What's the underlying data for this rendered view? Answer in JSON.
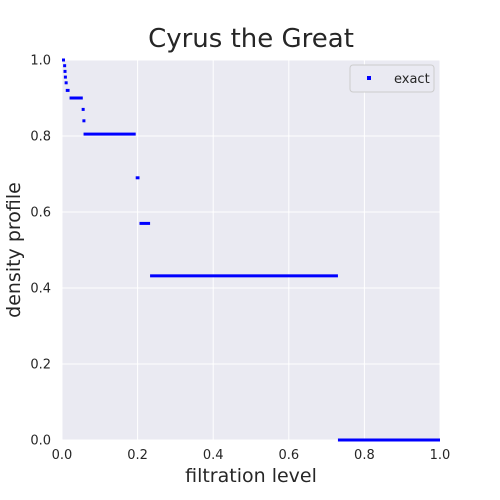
{
  "chart_data": {
    "type": "scatter",
    "title": "Cyrus the Great",
    "xlabel": "filtration level",
    "ylabel": "density profile",
    "xlim": [
      0,
      1
    ],
    "ylim": [
      0,
      1
    ],
    "x_ticks": [
      "0.0",
      "0.2",
      "0.4",
      "0.6",
      "0.8",
      "1.0"
    ],
    "y_ticks": [
      "0.0",
      "0.2",
      "0.4",
      "0.6",
      "0.8",
      "1.0"
    ],
    "grid": true,
    "legend": {
      "position": "top-right",
      "entries": [
        "exact"
      ]
    },
    "colors": {
      "series": "#0000ff",
      "background": "#eaeaf2",
      "grid": "#ffffff"
    },
    "series": [
      {
        "name": "exact",
        "segments": [
          {
            "x_start": 0.0,
            "x_end": 0.003,
            "y": 1.0
          },
          {
            "x_start": 0.003,
            "x_end": 0.006,
            "y": 0.985
          },
          {
            "x_start": 0.004,
            "x_end": 0.007,
            "y": 0.97
          },
          {
            "x_start": 0.005,
            "x_end": 0.008,
            "y": 0.955
          },
          {
            "x_start": 0.007,
            "x_end": 0.011,
            "y": 0.94
          },
          {
            "x_start": 0.01,
            "x_end": 0.02,
            "y": 0.92
          },
          {
            "x_start": 0.02,
            "x_end": 0.055,
            "y": 0.9
          },
          {
            "x_start": 0.052,
            "x_end": 0.054,
            "y": 0.87
          },
          {
            "x_start": 0.054,
            "x_end": 0.056,
            "y": 0.84
          },
          {
            "x_start": 0.057,
            "x_end": 0.195,
            "y": 0.805
          },
          {
            "x_start": 0.195,
            "x_end": 0.205,
            "y": 0.69
          },
          {
            "x_start": 0.205,
            "x_end": 0.233,
            "y": 0.57
          },
          {
            "x_start": 0.233,
            "x_end": 0.73,
            "y": 0.432
          },
          {
            "x_start": 0.73,
            "x_end": 1.0,
            "y": 0.0
          }
        ]
      }
    ]
  }
}
